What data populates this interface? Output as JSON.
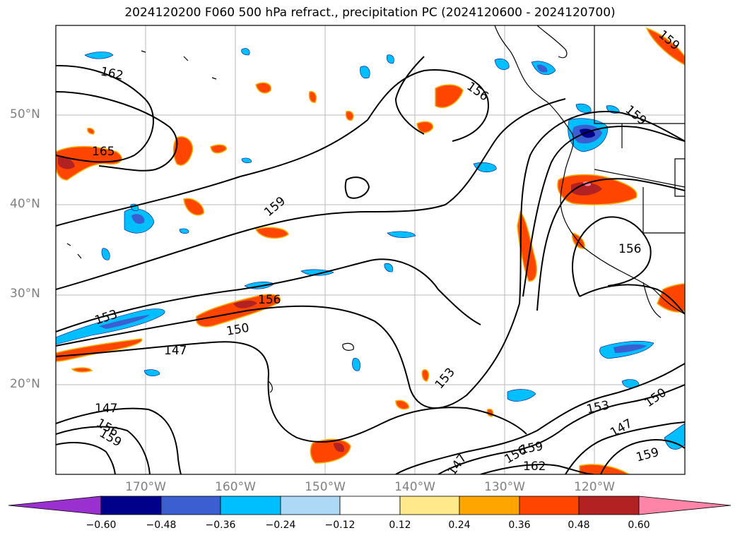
{
  "chart_data": {
    "type": "contour_map",
    "title": "2024120200 F060 500 hPa refract., precipitation PC (2024120600 - 2024120700)",
    "lat_labels": [
      "50°N",
      "40°N",
      "30°N",
      "20°N"
    ],
    "lon_labels": [
      "170°W",
      "160°W",
      "150°W",
      "140°W",
      "130°W",
      "120°W"
    ],
    "lat_range": [
      10,
      60
    ],
    "lon_range": [
      -180,
      -110
    ],
    "grid": true,
    "contour_labels": [
      "162",
      "165",
      "159",
      "156",
      "153",
      "150",
      "147"
    ],
    "colorbar": {
      "ticks": [
        "−0.60",
        "−0.48",
        "−0.36",
        "−0.24",
        "−0.12",
        "0.12",
        "0.24",
        "0.36",
        "0.48",
        "0.60"
      ],
      "colors": [
        "#9b30d0",
        "#00008b",
        "#3b5fd0",
        "#00bfff",
        "#add8f6",
        "#ffffff",
        "#ffe98a",
        "#ffa500",
        "#ff4500",
        "#b22222",
        "#ff85a8"
      ],
      "extend": "both"
    }
  }
}
